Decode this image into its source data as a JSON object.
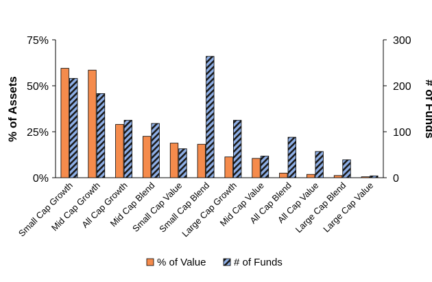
{
  "chart_data": {
    "type": "bar",
    "categories": [
      "Small Cap Growth",
      "Mid Cap Growth",
      "All Cap Growth",
      "Mid Cap Blend",
      "Small Cap Value",
      "Small Cap Blend",
      "Large Cap Growth",
      "Mid Cap Value",
      "All Cap Blend",
      "All Cap Value",
      "Large Cap Blend",
      "Large Cap Value"
    ],
    "series": [
      {
        "name": "% of Value",
        "axis": "left",
        "color": "#F58B4C",
        "values": [
          59.5,
          58.5,
          29,
          22.5,
          18.8,
          18.2,
          11.3,
          10.5,
          2.5,
          1.8,
          1.2,
          0.5
        ]
      },
      {
        "name": "# of Funds",
        "axis": "right",
        "color": "#8FB0E8",
        "hatch": "#1a1a1a",
        "values": [
          216,
          183,
          125,
          118,
          63,
          264,
          125,
          47,
          88,
          57,
          39,
          4
        ]
      }
    ],
    "y_left": {
      "label": "% of Assets",
      "range": [
        0,
        75
      ],
      "ticks": [
        "0%",
        "25%",
        "50%",
        "75%"
      ]
    },
    "y_right": {
      "label": "# of Funds",
      "range": [
        0,
        300
      ],
      "ticks": [
        "0",
        "100",
        "200",
        "300"
      ]
    },
    "legend": {
      "position": "bottom",
      "items": [
        "% of Value",
        "# of Funds"
      ]
    },
    "grid": false
  }
}
